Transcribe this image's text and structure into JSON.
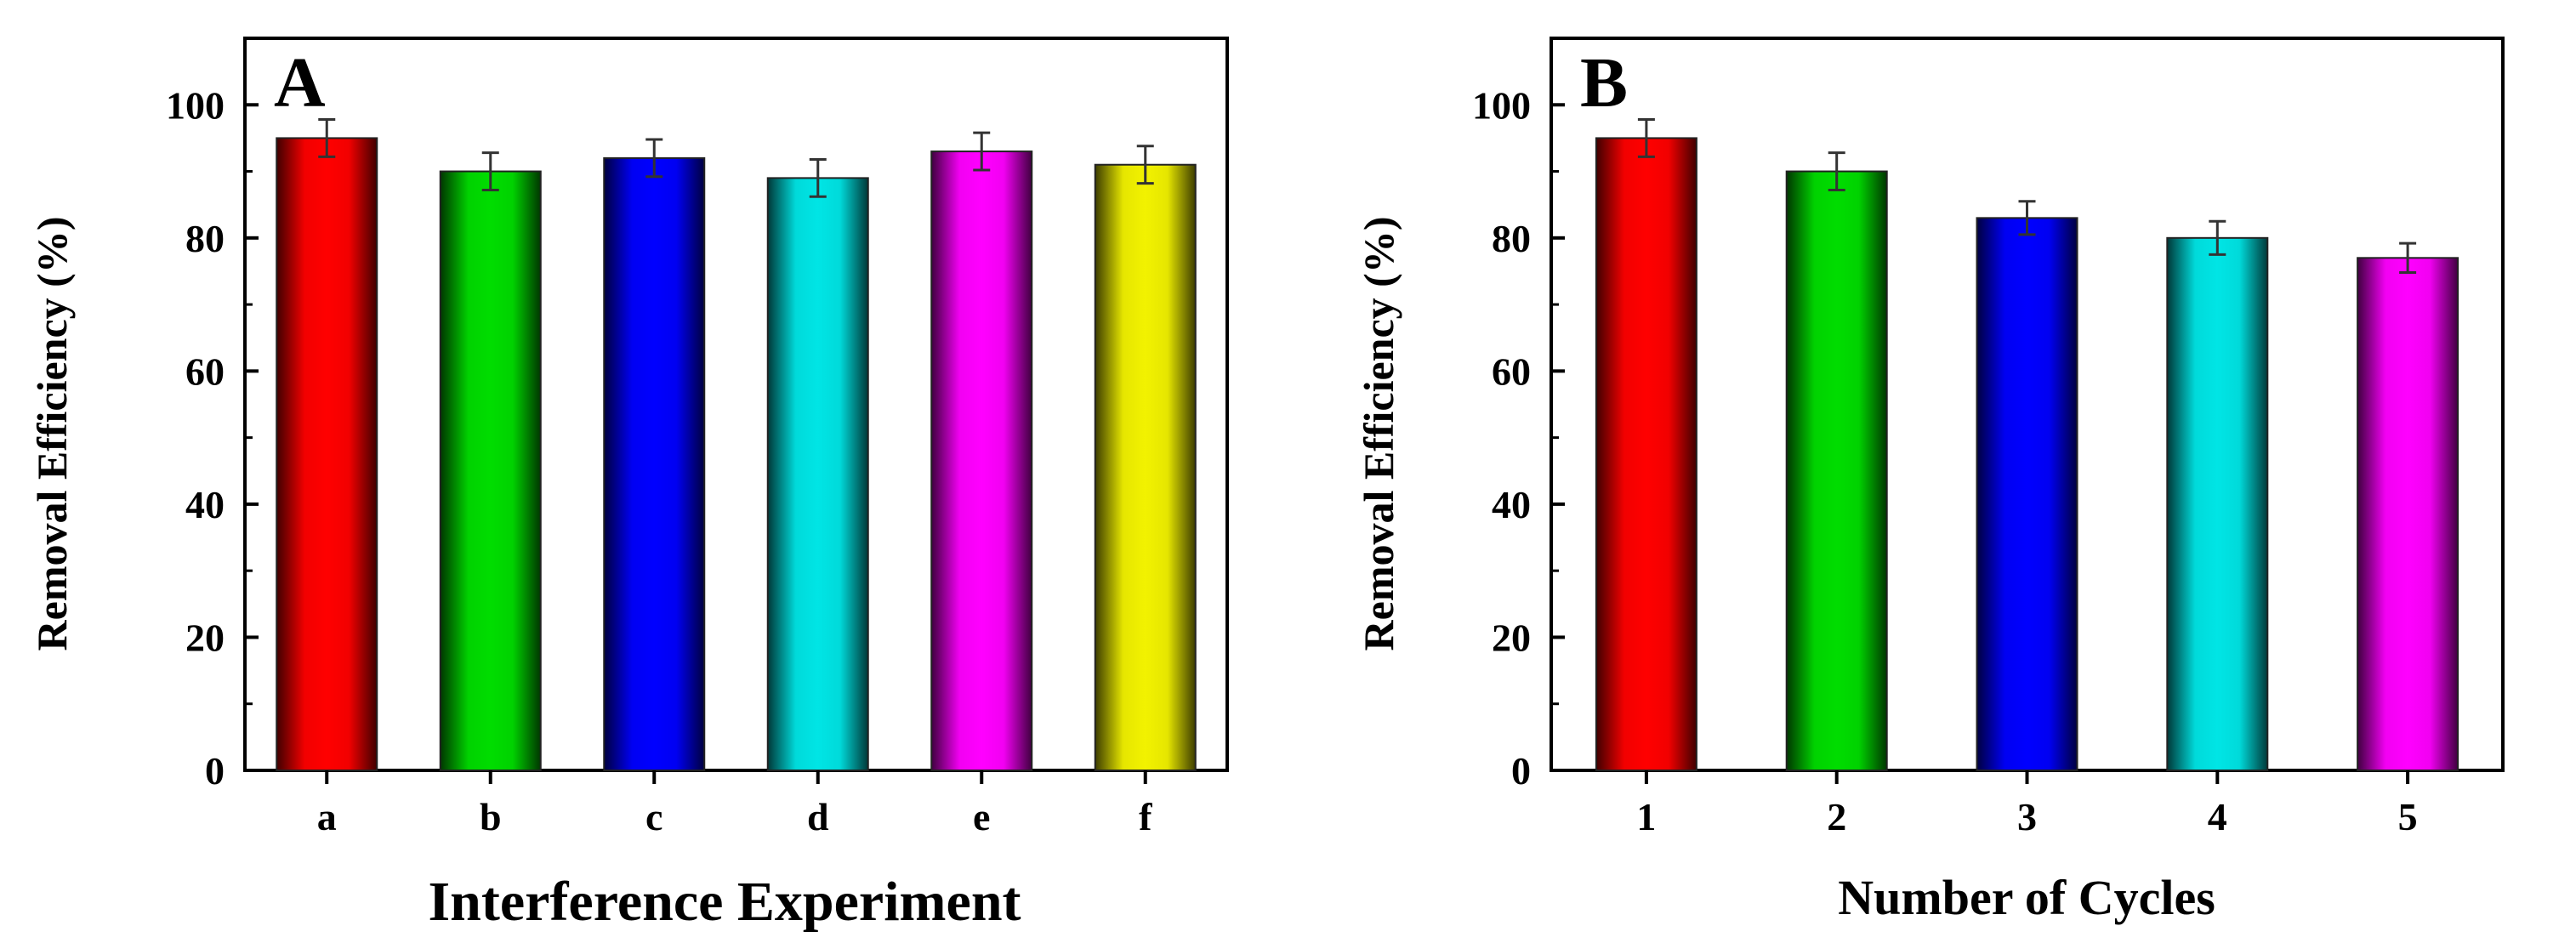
{
  "chart_data": [
    {
      "type": "bar",
      "panel_label": "A",
      "categories": [
        "a",
        "b",
        "c",
        "d",
        "e",
        "f"
      ],
      "values": [
        95,
        90,
        92,
        89,
        93,
        91
      ],
      "errors": [
        2.8,
        2.8,
        2.8,
        2.8,
        2.8,
        2.8
      ],
      "colors": [
        "#ff0000",
        "#00dd00",
        "#0000ff",
        "#00e5e5",
        "#ff00ff",
        "#f2f200"
      ],
      "title": "",
      "xlabel": "Interference Experiment",
      "ylabel": "Removal Efficiency (%)",
      "ylim": [
        0,
        110
      ],
      "yticks": [
        0,
        20,
        40,
        60,
        80,
        100
      ]
    },
    {
      "type": "bar",
      "panel_label": "B",
      "categories": [
        "1",
        "2",
        "3",
        "4",
        "5"
      ],
      "values": [
        95,
        90,
        83,
        80,
        77
      ],
      "errors": [
        2.8,
        2.8,
        2.5,
        2.5,
        2.2
      ],
      "colors": [
        "#ff0000",
        "#00dd00",
        "#0000ff",
        "#00e5e5",
        "#ff00ff"
      ],
      "title": "",
      "xlabel": "Number of Cycles",
      "ylabel": "Removal Efficiency (%)",
      "ylim": [
        0,
        110
      ],
      "yticks": [
        0,
        20,
        40,
        60,
        80,
        100
      ]
    }
  ]
}
